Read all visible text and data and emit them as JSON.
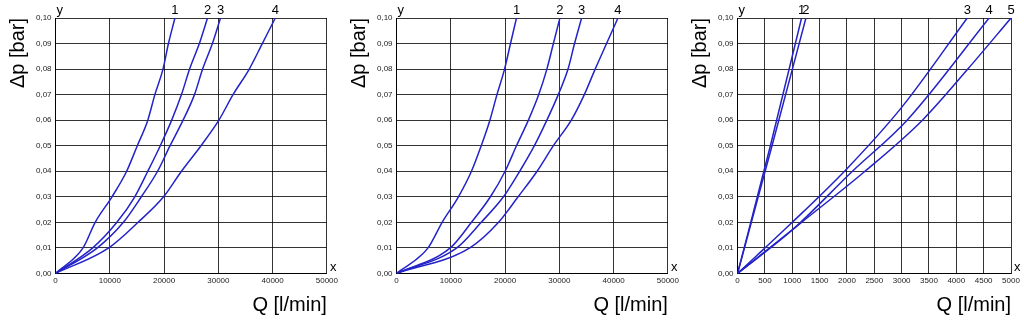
{
  "chart_data": [
    {
      "type": "line",
      "xlabel": "Q [l/min]",
      "ylabel": "Δp [bar]",
      "annotations": [
        "y",
        "x"
      ],
      "grid": true,
      "legend": false,
      "marker": "none",
      "xlim": [
        0,
        50000
      ],
      "xticks": [
        0,
        10000,
        20000,
        30000,
        40000,
        50000
      ],
      "ylim": [
        0,
        0.1
      ],
      "yticks": [
        {
          "value": 0,
          "label": "0,00"
        },
        {
          "value": 0.01,
          "label": "0,01"
        },
        {
          "value": 0.02,
          "label": "0,02"
        },
        {
          "value": 0.03,
          "label": "0,03"
        },
        {
          "value": 0.04,
          "label": "0,04"
        },
        {
          "value": 0.05,
          "label": "0,05"
        },
        {
          "value": 0.06,
          "label": "0,06"
        },
        {
          "value": 0.07,
          "label": "0,07"
        },
        {
          "value": 0.08,
          "label": "0,08"
        },
        {
          "value": 0.09,
          "label": "0,09"
        },
        {
          "value": 0.1,
          "label": "0,10"
        }
      ],
      "series": [
        {
          "name": "1",
          "color": "#2323c8",
          "x": [
            0,
            5060,
            7300,
            10400,
            13100,
            15060,
            17000,
            18300,
            19800,
            20800,
            22000
          ],
          "values": [
            0,
            0.01,
            0.02,
            0.03,
            0.04,
            0.05,
            0.06,
            0.07,
            0.08,
            0.09,
            0.1
          ]
        },
        {
          "name": "2",
          "color": "#2323c8",
          "x": [
            0,
            6850,
            11300,
            14600,
            17000,
            19300,
            21400,
            23200,
            24700,
            26500,
            28000
          ],
          "values": [
            0,
            0.01,
            0.02,
            0.03,
            0.04,
            0.05,
            0.06,
            0.07,
            0.08,
            0.09,
            0.1
          ]
        },
        {
          "name": "3",
          "color": "#2323c8",
          "x": [
            0,
            7700,
            12500,
            15800,
            18800,
            21100,
            23500,
            25600,
            27100,
            28900,
            30400
          ],
          "values": [
            0,
            0.01,
            0.02,
            0.03,
            0.04,
            0.05,
            0.06,
            0.07,
            0.08,
            0.09,
            0.1
          ]
        },
        {
          "name": "4",
          "color": "#2323c8",
          "x": [
            0,
            9800,
            15200,
            19900,
            23200,
            26800,
            30100,
            32700,
            35700,
            38100,
            40500
          ],
          "values": [
            0,
            0.01,
            0.02,
            0.03,
            0.04,
            0.05,
            0.06,
            0.07,
            0.08,
            0.09,
            0.1
          ]
        }
      ]
    },
    {
      "type": "line",
      "xlabel": "Q [l/min]",
      "ylabel": "Δp [bar]",
      "annotations": [
        "y",
        "x"
      ],
      "grid": true,
      "legend": false,
      "marker": "none",
      "xlim": [
        0,
        50000
      ],
      "xticks": [
        0,
        10000,
        20000,
        30000,
        40000,
        50000
      ],
      "ylim": [
        0,
        0.1
      ],
      "yticks": [
        {
          "value": 0,
          "label": "0,00"
        },
        {
          "value": 0.01,
          "label": "0,01"
        },
        {
          "value": 0.02,
          "label": "0,02"
        },
        {
          "value": 0.03,
          "label": "0,03"
        },
        {
          "value": 0.04,
          "label": "0,04"
        },
        {
          "value": 0.05,
          "label": "0,05"
        },
        {
          "value": 0.06,
          "label": "0,06"
        },
        {
          "value": 0.07,
          "label": "0,07"
        },
        {
          "value": 0.08,
          "label": "0,08"
        },
        {
          "value": 0.09,
          "label": "0,09"
        },
        {
          "value": 0.1,
          "label": "0,10"
        }
      ],
      "series": [
        {
          "name": "1",
          "color": "#2323c8",
          "x": [
            0,
            5800,
            8400,
            11400,
            13800,
            15600,
            17200,
            18500,
            19900,
            21000,
            22100
          ],
          "values": [
            0,
            0.01,
            0.02,
            0.03,
            0.04,
            0.05,
            0.06,
            0.07,
            0.08,
            0.09,
            0.1
          ]
        },
        {
          "name": "2",
          "color": "#2323c8",
          "x": [
            0,
            9900,
            13800,
            17300,
            20000,
            22100,
            24300,
            26200,
            27700,
            28900,
            30100
          ],
          "values": [
            0,
            0.01,
            0.02,
            0.03,
            0.04,
            0.05,
            0.06,
            0.07,
            0.08,
            0.09,
            0.1
          ]
        },
        {
          "name": "3",
          "color": "#2323c8",
          "x": [
            0,
            11100,
            15600,
            19700,
            22700,
            25400,
            27700,
            29800,
            31600,
            32800,
            34100
          ],
          "values": [
            0,
            0.01,
            0.02,
            0.03,
            0.04,
            0.05,
            0.06,
            0.07,
            0.08,
            0.09,
            0.1
          ]
        },
        {
          "name": "4",
          "color": "#2323c8",
          "x": [
            0,
            13500,
            18800,
            22400,
            25900,
            28900,
            32200,
            34600,
            36600,
            38700,
            40800
          ],
          "values": [
            0,
            0.01,
            0.02,
            0.03,
            0.04,
            0.05,
            0.06,
            0.07,
            0.08,
            0.09,
            0.1
          ]
        }
      ]
    },
    {
      "type": "line",
      "xlabel": "Q [l/min]",
      "ylabel": "Δp [bar]",
      "annotations": [
        "y",
        "x"
      ],
      "grid": true,
      "legend": false,
      "marker": "none",
      "xlim": [
        0,
        5000
      ],
      "xticks": [
        0,
        500,
        1000,
        1500,
        2000,
        2500,
        3000,
        3500,
        4000,
        4500,
        5000
      ],
      "ylim": [
        0,
        0.1
      ],
      "yticks": [
        {
          "value": 0,
          "label": "0,00"
        },
        {
          "value": 0.01,
          "label": "0,01"
        },
        {
          "value": 0.02,
          "label": "0,02"
        },
        {
          "value": 0.03,
          "label": "0,03"
        },
        {
          "value": 0.04,
          "label": "0,04"
        },
        {
          "value": 0.05,
          "label": "0,05"
        },
        {
          "value": 0.06,
          "label": "0,06"
        },
        {
          "value": 0.07,
          "label": "0,07"
        },
        {
          "value": 0.08,
          "label": "0,08"
        },
        {
          "value": 0.09,
          "label": "0,09"
        },
        {
          "value": 0.1,
          "label": "0,10"
        }
      ],
      "series": [
        {
          "name": "1",
          "color": "#2323c8",
          "x": [
            0,
            600,
            1170
          ],
          "values": [
            0,
            0.05,
            0.1
          ]
        },
        {
          "name": "2",
          "color": "#2323c8",
          "x": [
            0,
            630,
            1250
          ],
          "values": [
            0,
            0.05,
            0.1
          ]
        },
        {
          "name": "3",
          "color": "#2323c8",
          "x": [
            0,
            1000,
            2000,
            3000,
            4200
          ],
          "values": [
            0,
            0.02,
            0.041,
            0.065,
            0.1
          ]
        },
        {
          "name": "4",
          "color": "#2323c8",
          "x": [
            0,
            1000,
            2100,
            3100,
            4600
          ],
          "values": [
            0,
            0.017,
            0.04,
            0.06,
            0.1
          ]
        },
        {
          "name": "5",
          "color": "#2323c8",
          "x": [
            0,
            1170,
            2330,
            3380,
            4210,
            5000
          ],
          "values": [
            0,
            0.02,
            0.04,
            0.06,
            0.08,
            0.1
          ]
        }
      ]
    }
  ]
}
